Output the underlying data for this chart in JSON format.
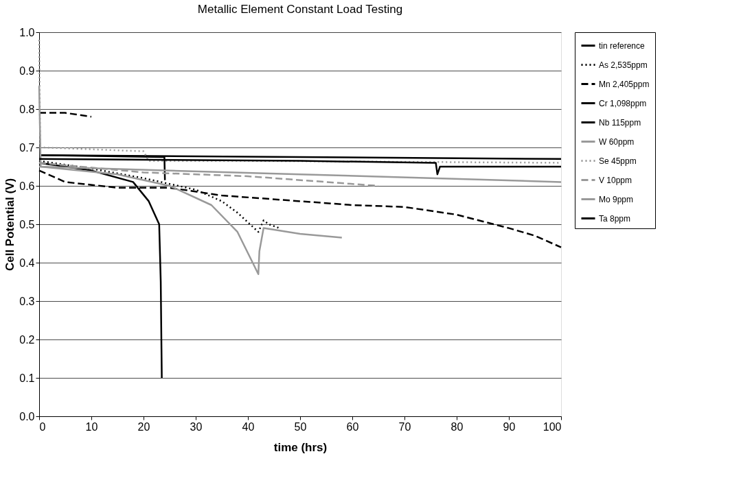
{
  "chart_data": {
    "type": "line",
    "title": "Metallic Element Constant Load Testing",
    "xlabel": "time (hrs)",
    "ylabel": "Cell Potential (V)",
    "xlim": [
      0,
      100
    ],
    "xticks": [
      0,
      10,
      20,
      30,
      40,
      50,
      60,
      70,
      80,
      90,
      100
    ],
    "ylim": [
      0,
      1
    ],
    "yticks": [
      {
        "value": 0,
        "label": "0.0"
      },
      0.1,
      0.2,
      0.3,
      0.4,
      0.5,
      0.6,
      0.7,
      0.8,
      0.9,
      {
        "value": 1,
        "label": "1.0"
      }
    ],
    "grid": "y",
    "legend": "right",
    "marker": "none",
    "series": [
      {
        "name": "tin reference",
        "color": "#000000",
        "line_style": "solid",
        "x": [
          0,
          50,
          100
        ],
        "values": [
          0.68,
          0.675,
          0.67
        ]
      },
      {
        "name": "As 2,535ppm",
        "color": "#000000",
        "line_style": "dotted",
        "x": [
          0,
          10,
          20,
          30,
          35,
          38,
          42,
          43,
          44,
          46
        ],
        "values": [
          0.665,
          0.645,
          0.62,
          0.59,
          0.56,
          0.53,
          0.48,
          0.51,
          0.5,
          0.49
        ]
      },
      {
        "name": "Mn 2,405ppm",
        "color": "#000000",
        "line_style": "dashed",
        "x": [
          0,
          5,
          10,
          null,
          0,
          5,
          15,
          25,
          35,
          50,
          60,
          70,
          80,
          90,
          95,
          100
        ],
        "values": [
          0.79,
          0.79,
          0.78,
          null,
          0.64,
          0.61,
          0.595,
          0.595,
          0.575,
          0.56,
          0.55,
          0.545,
          0.525,
          0.49,
          0.47,
          0.44
        ]
      },
      {
        "name": "Cr 1,098ppm",
        "color": "#000000",
        "line_style": "solid",
        "x": [
          0,
          10,
          18,
          21,
          23,
          23.3,
          23.5
        ],
        "values": [
          0.66,
          0.64,
          0.61,
          0.56,
          0.5,
          0.35,
          0.1
        ]
      },
      {
        "name": "Nb 115ppm",
        "color": "#000000",
        "line_style": "solid",
        "x": [
          0,
          24,
          24.1
        ],
        "values": [
          0.68,
          0.675,
          0.615
        ]
      },
      {
        "name": "W 60ppm",
        "color": "#999999",
        "line_style": "solid",
        "x": [
          0,
          24,
          50,
          100
        ],
        "values": [
          0.65,
          0.64,
          0.63,
          0.61
        ]
      },
      {
        "name": "Se 45ppm",
        "color": "#999999",
        "line_style": "dotted",
        "x": [
          0,
          0.2,
          0.5,
          20,
          21,
          40,
          100
        ],
        "values": [
          0.98,
          0.7,
          0.7,
          0.69,
          0.665,
          0.665,
          0.66
        ]
      },
      {
        "name": "V 10ppm",
        "color": "#999999",
        "line_style": "dashed",
        "x": [
          0,
          20,
          40,
          65
        ],
        "values": [
          0.66,
          0.635,
          0.625,
          0.6
        ]
      },
      {
        "name": "Mo 9ppm",
        "color": "#999999",
        "line_style": "solid",
        "x": [
          0,
          0.3,
          15,
          25,
          33,
          38,
          42,
          42.2,
          43,
          50,
          58
        ],
        "values": [
          0.86,
          0.65,
          0.63,
          0.6,
          0.55,
          0.48,
          0.37,
          0.43,
          0.49,
          0.475,
          0.465
        ]
      },
      {
        "name": "Ta 8ppm",
        "color": "#000000",
        "line_style": "solid",
        "x": [
          0,
          50,
          76,
          76.3,
          76.8,
          100
        ],
        "values": [
          0.67,
          0.665,
          0.66,
          0.63,
          0.65,
          0.65
        ]
      }
    ]
  }
}
